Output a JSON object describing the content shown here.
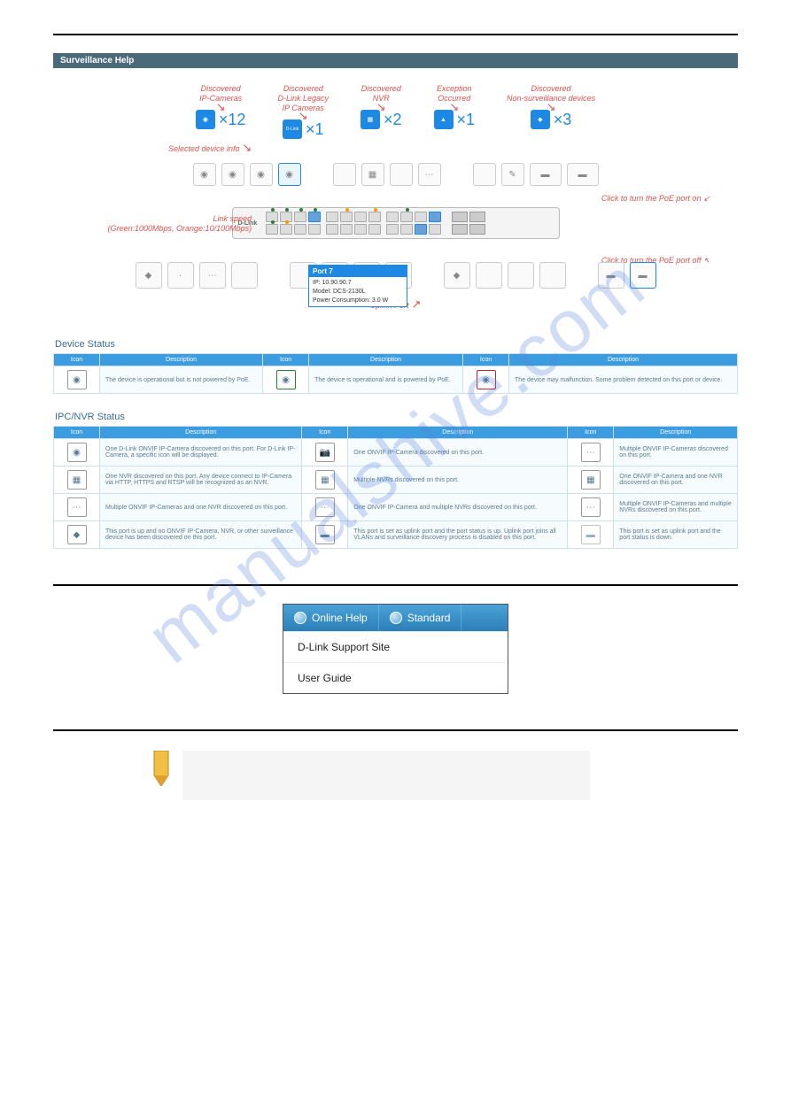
{
  "header": {
    "title": "Surveillance Help"
  },
  "counters": {
    "ip_cam": {
      "label": "IP-Camera",
      "icon_label": "IP",
      "count": "×12",
      "annotation": "Discovered\nIP-Cameras"
    },
    "legacy": {
      "label": "Legacy",
      "icon_label": "D-Link\nLegacy\nIP Camera",
      "count": "×1",
      "annotation": "Discovered\nD-Link Legacy\nIP Cameras"
    },
    "nvr": {
      "label": "NVR",
      "icon_label": "NVR",
      "count": "×2",
      "annotation": "Discovered\nNVR"
    },
    "except": {
      "label": "Exception",
      "icon_label": "!",
      "count": "×1",
      "annotation": "Exception\nOccurred"
    },
    "other": {
      "label": "Other",
      "icon_label": "other",
      "count": "×3",
      "annotation": "Discovered\nNon-surveillance devices"
    }
  },
  "annotations": {
    "selected_device": "Selected device info",
    "link_speed": "Link speed\n(Green:1000Mbps, Orange:10/100Mbps)",
    "poe_on": "Click to turn the PoE port on",
    "poe_off": "Click to turn the PoE port off",
    "uplink": "Uplink Port"
  },
  "tooltip": {
    "title": "Port 7",
    "ip": "IP: 10.90.90.7",
    "model": "Model: DCS-2130L",
    "power": "Power Consumption: 3.0 W"
  },
  "switch": {
    "brand": "D-Link"
  },
  "device_status": {
    "title": "Device Status",
    "col_icon": "Icon",
    "col_desc": "Description",
    "rows": [
      {
        "d1": "The device is operational but is not powered by PoE.",
        "d2": "The device is operational and is powered by PoE.",
        "d3": "The device may malfunction. Some problem detected on this port or device."
      }
    ]
  },
  "ipc_status": {
    "title": "IPC/NVR Status",
    "col_icon": "Icon",
    "col_desc": "Description",
    "rows": [
      {
        "d1": "One D-Link ONVIF IP-Camera discovered on this port. For D-Link IP-Camera, a specific icon will be displayed.",
        "d2": "One ONVIF IP-Camera discovered on this port.",
        "d3": "Multiple ONVIF IP-Cameras discovered on this port."
      },
      {
        "d1": "One NVR discovered on this port. Any device connect to IP-Camera via HTTP, HTTPS and RTSP will be recognized as an NVR.",
        "d2": "Multiple NVRs discovered on this port.",
        "d3": "One ONVIF IP-Camera and one NVR discovered on this port."
      },
      {
        "d1": "Multiple ONVIF IP-Cameras and one NVR discovered on this port.",
        "d2": "One ONVIF IP-Camera and multiple NVRs discovered on this port.",
        "d3": "Multiple ONVIF IP-Cameras and multiple NVRs discovered on this port."
      },
      {
        "d1": "This port is up and no ONVIF IP-Camera, NVR, or other surveillance device has been discovered on this port.",
        "d2": "This port is set as uplink port and the port status is up. Uplink port joins all VLANs and surveillance discovery process is disabled on this port.",
        "d3": "This port is set as uplink port and the port status is down."
      }
    ]
  },
  "help_menu": {
    "tab1": "Online Help",
    "tab2": "Standard",
    "item1": "D-Link Support Site",
    "item2": "User Guide"
  },
  "watermark": "manualshive.com",
  "colors": {
    "header_bg": "#4a6a7a",
    "brand_blue": "#1e88e5",
    "table_head": "#3b9de0",
    "annotation_red": "#d9534f"
  }
}
